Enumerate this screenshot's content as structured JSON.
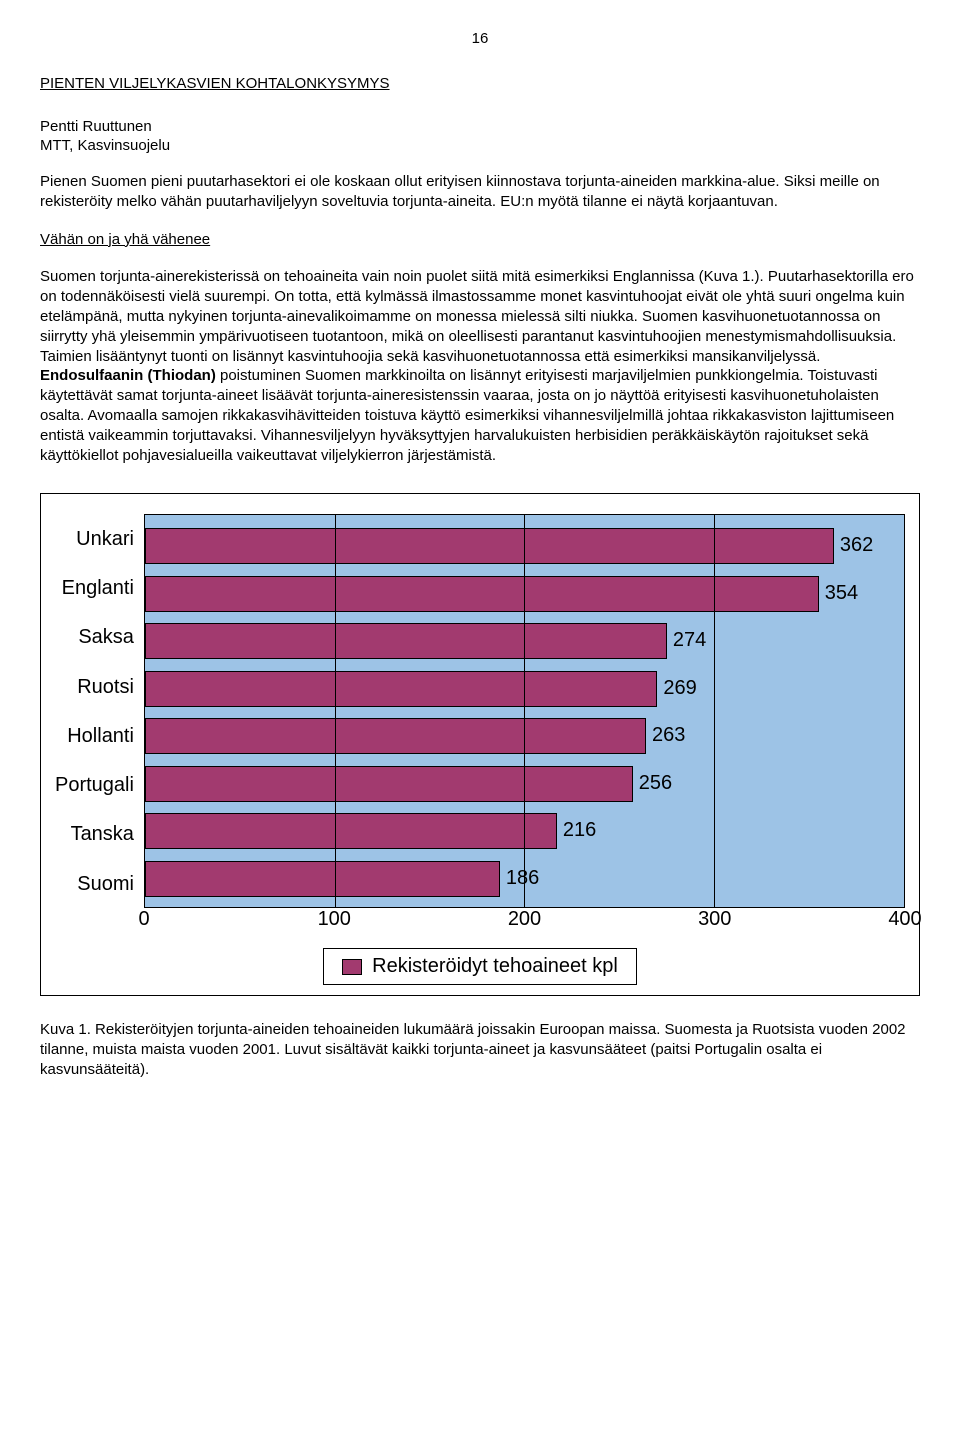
{
  "page_number": "16",
  "heading": "PIENTEN VILJELYKASVIEN KOHTALONKYSYMYS",
  "author": "Pentti Ruuttunen",
  "affiliation": "MTT, Kasvinsuojelu",
  "intro": "Pienen Suomen pieni puutarhasektori ei ole koskaan ollut erityisen kiinnostava torjunta-aineiden markkina-alue. Siksi meille on rekisteröity melko vähän puutarhaviljelyyn soveltuvia torjunta-aineita. EU:n myötä tilanne ei näytä korjaantuvan.",
  "subheading": "Vähän on ja yhä vähenee",
  "body_pre": "Suomen torjunta-ainerekisterissä on tehoaineita vain noin puolet siitä mitä esimerkiksi Englannissa (Kuva 1.). Puutarhasektorilla ero on todennäköisesti vielä suurempi. On totta, että kylmässä ilmastossamme monet kasvintuhoojat eivät ole yhtä suuri ongelma kuin etelämpänä, mutta nykyinen torjunta-ainevalikoimamme on monessa mielessä silti niukka. Suomen kasvihuonetuotannossa on siirrytty yhä yleisemmin ympärivuotiseen tuotantoon, mikä on oleellisesti parantanut kasvintuhoojien menestymismahdollisuuksia. Taimien lisääntynyt tuonti on lisännyt kasvintuhoojia sekä kasvihuonetuotannossa että esimerkiksi mansikanviljelyssä. ",
  "body_bold": "Endosulfaanin (Thiodan)",
  "body_post": " poistuminen Suomen markkinoilta on lisännyt erityisesti marjaviljelmien punkkiongelmia. Toistuvasti käytettävät samat torjunta-aineet lisäävät torjunta-aineresistenssin vaaraa, josta on jo näyttöä erityisesti kasvihuonetuholaisten osalta. Avomaalla samojen rikkakasvihävitteiden toistuva käyttö esimerkiksi vihannesviljelmillä johtaa rikkakasviston lajittumiseen entistä vaikeammin torjuttavaksi. Vihannesviljelyyn hyväksyttyjen harvalukuisten herbisidien peräkkäiskäytön rajoitukset sekä käyttökiellot pohjavesialueilla vaikeuttavat viljelykierron järjestämistä.",
  "chart": {
    "type": "bar-horizontal",
    "background_color": "#9dc3e6",
    "bar_color": "#a23a6f",
    "border_color": "#000000",
    "grid_color": "#000000",
    "label_fontsize": 20,
    "xmin": 0,
    "xmax": 400,
    "xticks": [
      0,
      100,
      200,
      300,
      400
    ],
    "categories": [
      "Unkari",
      "Englanti",
      "Saksa",
      "Ruotsi",
      "Hollanti",
      "Portugali",
      "Tanska",
      "Suomi"
    ],
    "values": [
      362,
      354,
      274,
      269,
      263,
      256,
      216,
      186
    ],
    "legend_label": "Rekisteröidyt tehoaineet kpl"
  },
  "caption": "Kuva 1. Rekisteröityjen torjunta-aineiden tehoaineiden lukumäärä joissakin Euroopan maissa. Suomesta ja Ruotsista vuoden 2002 tilanne, muista maista vuoden 2001. Luvut sisältävät kaikki torjunta-aineet ja kasvunsääteet (paitsi Portugalin osalta ei kasvunsääteitä)."
}
